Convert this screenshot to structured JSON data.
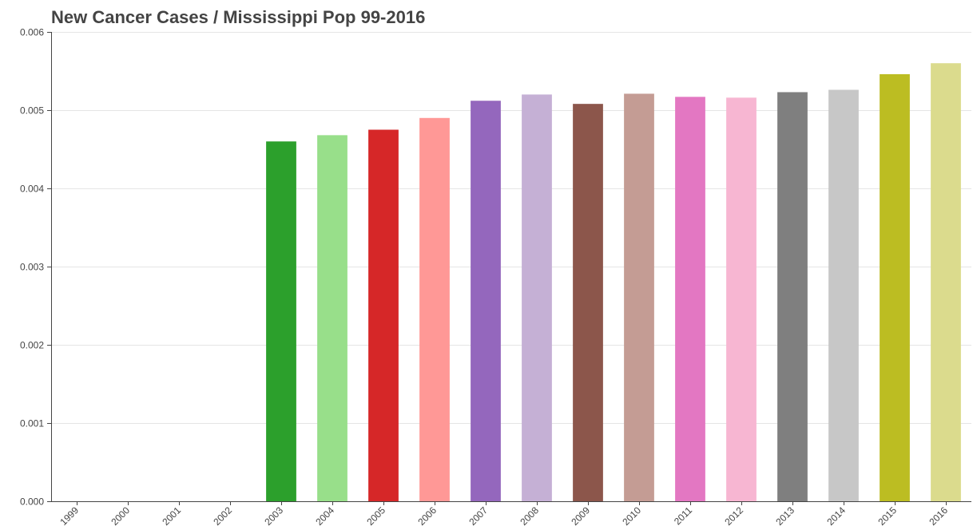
{
  "chart_data": {
    "type": "bar",
    "title": "New Cancer Cases / Mississippi Pop 99-2016",
    "xlabel": "",
    "ylabel": "",
    "ylim": [
      0,
      0.006
    ],
    "y_ticks": [
      "0.000",
      "0.001",
      "0.002",
      "0.003",
      "0.004",
      "0.005",
      "0.006"
    ],
    "grid": true,
    "categories": [
      "1999",
      "2000",
      "2001",
      "2002",
      "2003",
      "2004",
      "2005",
      "2006",
      "2007",
      "2008",
      "2009",
      "2010",
      "2011",
      "2012",
      "2013",
      "2014",
      "2015",
      "2016"
    ],
    "values": [
      0,
      0,
      0,
      0,
      0.0046,
      0.00468,
      0.00475,
      0.0049,
      0.00512,
      0.0052,
      0.00508,
      0.00521,
      0.00517,
      0.00516,
      0.00523,
      0.00526,
      0.00546,
      0.0056
    ],
    "colors": [
      "#1f77b4",
      "#aec7e8",
      "#ff7f0e",
      "#ffbb78",
      "#2ca02c",
      "#98df8a",
      "#d62728",
      "#ff9896",
      "#9467bd",
      "#c5b0d5",
      "#8c564b",
      "#c49c94",
      "#e377c2",
      "#f7b6d2",
      "#7f7f7f",
      "#c7c7c7",
      "#bcbd22",
      "#dbdb8d"
    ]
  }
}
